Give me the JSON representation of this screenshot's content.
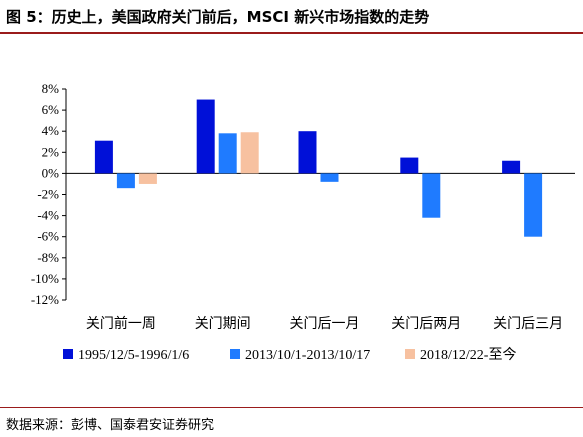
{
  "header": {
    "title": "图 5：历史上，美国政府关门前后，MSCI 新兴市场指数的走势"
  },
  "footer": {
    "source": "数据来源：彭博、国泰君安证券研究"
  },
  "chart_data": {
    "type": "bar",
    "categories": [
      "关门前一周",
      "关门期间",
      "关门后一月",
      "关门后两月",
      "关门后三月"
    ],
    "series": [
      {
        "name": "1995/12/5-1996/1/6",
        "color": "#0010d8",
        "values": [
          3.1,
          7.0,
          4.0,
          1.5,
          1.2
        ]
      },
      {
        "name": "2013/10/1-2013/10/17",
        "color": "#1f7bff",
        "values": [
          -1.4,
          3.8,
          -0.8,
          -4.2,
          -6.0
        ]
      },
      {
        "name": "2018/12/22-至今",
        "color": "#f7c1a0",
        "values": [
          -1.0,
          3.9,
          null,
          null,
          null
        ]
      }
    ],
    "ylim": [
      -12,
      8
    ],
    "yticks": [
      "8%",
      "6%",
      "4%",
      "2%",
      "0%",
      "-2%",
      "-4%",
      "-6%",
      "-8%",
      "-10%",
      "-12%"
    ],
    "ytick_values": [
      8,
      6,
      4,
      2,
      0,
      -2,
      -4,
      -6,
      -8,
      -10,
      -12
    ],
    "xlabel": "",
    "ylabel": "",
    "legend_position": "bottom",
    "grid": false
  }
}
